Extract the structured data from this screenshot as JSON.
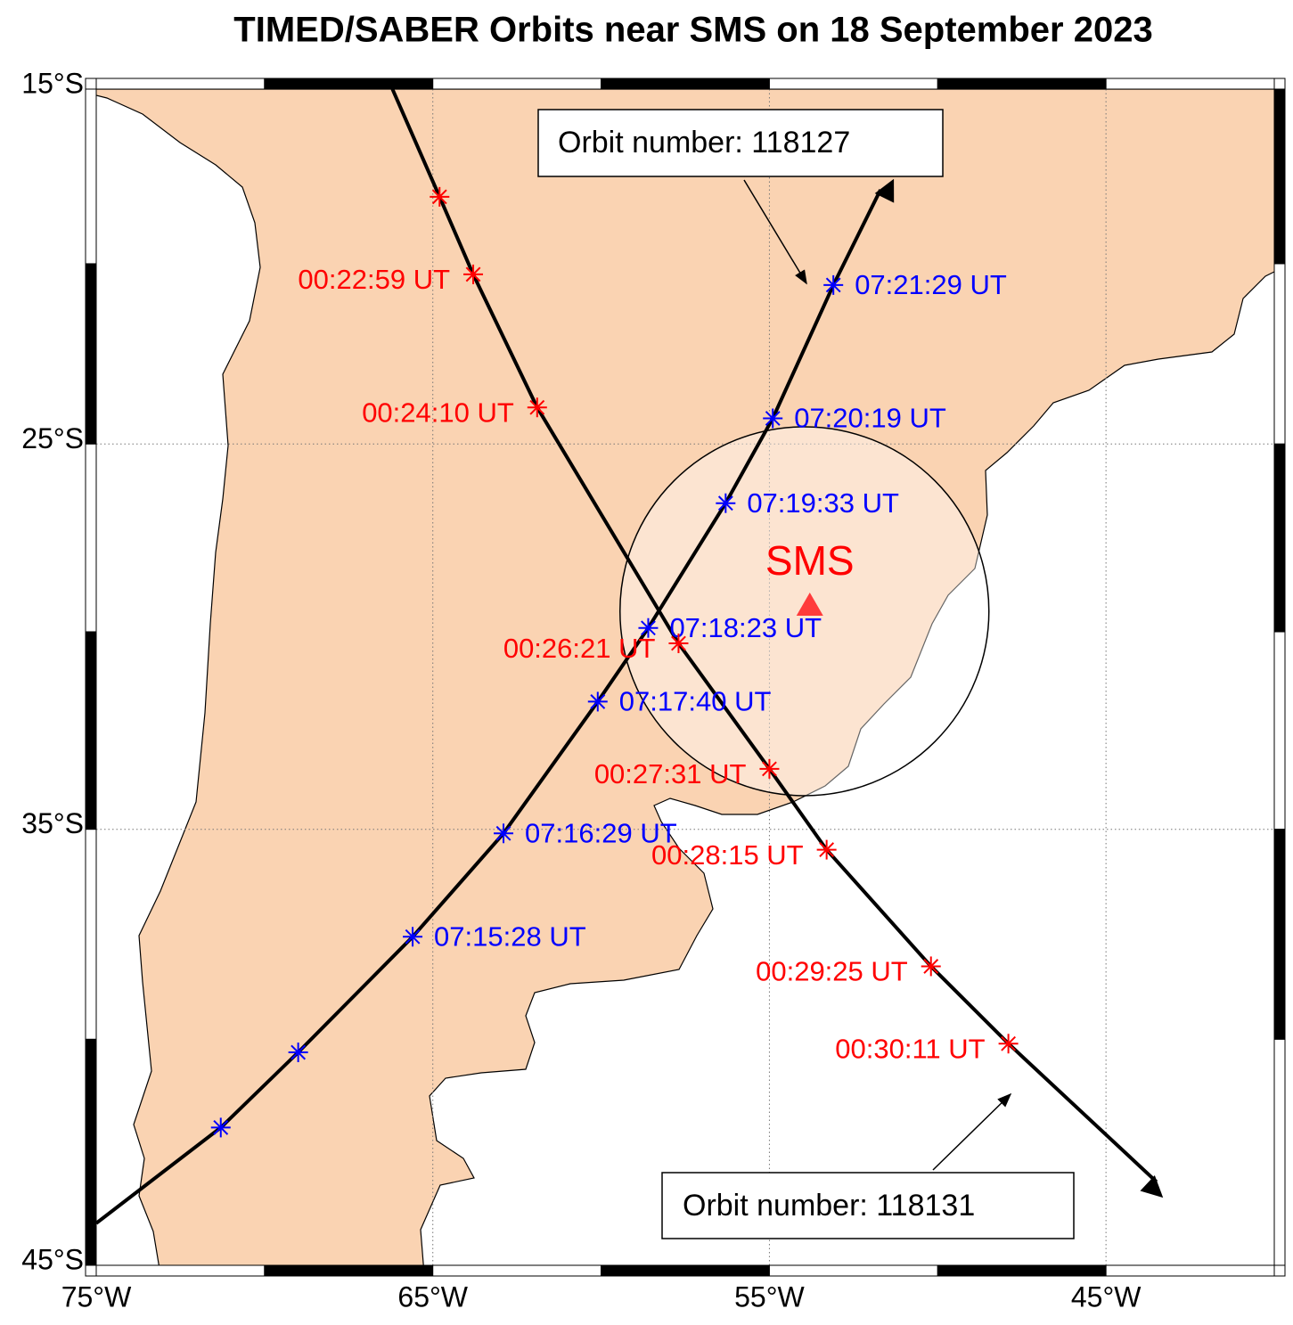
{
  "title": "TIMED/SABER Orbits near SMS on 18 September 2023",
  "map": {
    "projection": "mercator",
    "xlim": [
      -75,
      -40
    ],
    "ylim": [
      -15,
      -45
    ],
    "xticks": [
      {
        "value": -75,
        "label": "75°W"
      },
      {
        "value": -65,
        "label": "65°W"
      },
      {
        "value": -55,
        "label": "55°W"
      },
      {
        "value": -45,
        "label": "45°W"
      }
    ],
    "yticks": [
      {
        "value": -15,
        "label": "15°S"
      },
      {
        "value": -25,
        "label": "25°S"
      },
      {
        "value": -35,
        "label": "35°S"
      },
      {
        "value": -45,
        "label": "45°S"
      }
    ],
    "grid": true,
    "land_color": "#fad3b2"
  },
  "station": {
    "label": "SMS",
    "lon": -53.8,
    "lat": -29.3,
    "color": "#ff3b3b"
  },
  "orbits": [
    {
      "label": "Orbit number: 118127",
      "color": "#0000ff",
      "track_lon": [
        -75,
        -51.7
      ],
      "track_lat": [
        -44.1,
        -17.9
      ],
      "lon": [
        -71.3,
        -69.0,
        -65.6,
        -62.9,
        -60.1,
        -58.6,
        -56.3,
        -54.9,
        -53.1
      ],
      "lat": [
        -42.0,
        -40.3,
        -37.6,
        -35.1,
        -31.8,
        -29.9,
        -26.6,
        -24.3,
        -20.6
      ],
      "times": [
        null,
        null,
        "07:15:28 UT",
        "07:16:29 UT",
        "07:17:40 UT",
        "07:18:23 UT",
        "07:19:33 UT",
        "07:20:19 UT",
        "07:21:29 UT"
      ]
    },
    {
      "label": "Orbit number: 118131",
      "color": "#ff0000",
      "track_lon": [
        -66.2,
        -43.5
      ],
      "track_lat": [
        -15,
        -43.2
      ],
      "lon": [
        -64.8,
        -63.8,
        -61.9,
        -57.7,
        -55.0,
        -53.3,
        -50.2,
        -47.9
      ],
      "lat": [
        -18.1,
        -20.3,
        -24.0,
        -30.3,
        -33.5,
        -35.5,
        -38.3,
        -40.1
      ],
      "times": [
        null,
        "00:22:59 UT",
        "00:24:10 UT",
        "00:26:21 UT",
        "00:27:31 UT",
        "00:28:15 UT",
        "00:29:25 UT",
        "00:30:11 UT"
      ]
    }
  ]
}
